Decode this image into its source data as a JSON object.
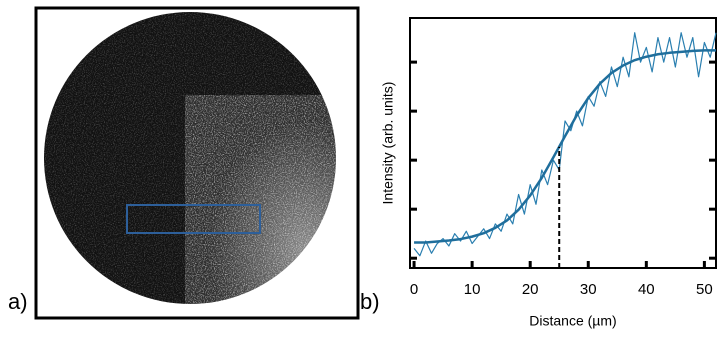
{
  "panel_labels": [
    "a)",
    "b)"
  ],
  "chart_data": {
    "type": "line",
    "xlabel": "Distance (µm)",
    "ylabel": "Intensity (arb. units)",
    "xlim": [
      -0.7,
      52
    ],
    "xticks": [
      0,
      10,
      20,
      30,
      40,
      50
    ],
    "ylim": [
      -0.2,
      4.9
    ],
    "yticks": [
      0,
      1,
      2,
      3,
      4
    ],
    "series": [
      {
        "color": "#2a7fb0",
        "width": 1.2,
        "x": [
          0,
          1,
          2,
          3,
          4,
          5,
          6,
          7,
          8,
          9,
          10,
          11,
          12,
          13,
          14,
          15,
          16,
          17,
          18,
          19,
          20,
          21,
          22,
          23,
          24,
          25,
          26,
          27,
          28,
          29,
          30,
          31,
          32,
          33,
          34,
          35,
          36,
          37,
          38,
          39,
          40,
          41,
          42,
          43,
          44,
          45,
          46,
          47,
          48,
          49,
          50,
          51,
          52
        ],
        "values": [
          0.2,
          0.05,
          0.35,
          0.1,
          0.3,
          0.4,
          0.25,
          0.5,
          0.35,
          0.55,
          0.3,
          0.45,
          0.6,
          0.4,
          0.7,
          0.55,
          0.9,
          0.7,
          1.3,
          0.9,
          1.5,
          1.1,
          1.8,
          1.5,
          2.0,
          1.8,
          2.8,
          2.6,
          3.0,
          2.7,
          3.3,
          3.1,
          3.6,
          3.3,
          3.9,
          3.5,
          4.1,
          3.7,
          4.6,
          4.0,
          4.3,
          3.8,
          4.5,
          4.0,
          4.5,
          3.9,
          4.6,
          4.1,
          4.5,
          3.7,
          4.4,
          4.1,
          4.6
        ]
      },
      {
        "color": "#1f6e9c",
        "width": 2.5,
        "x": [
          0,
          2,
          4,
          6,
          8,
          10,
          12,
          14,
          16,
          18,
          20,
          22,
          24,
          26,
          28,
          30,
          32,
          34,
          36,
          38,
          40,
          42,
          44,
          46,
          48,
          50,
          52
        ],
        "values": [
          0.32,
          0.32,
          0.34,
          0.36,
          0.39,
          0.44,
          0.51,
          0.62,
          0.77,
          0.99,
          1.28,
          1.64,
          2.06,
          2.49,
          2.91,
          3.27,
          3.56,
          3.78,
          3.93,
          4.04,
          4.11,
          4.16,
          4.19,
          4.21,
          4.23,
          4.24,
          4.24
        ]
      }
    ],
    "marker_x": 25,
    "marker_y": 2.27
  }
}
